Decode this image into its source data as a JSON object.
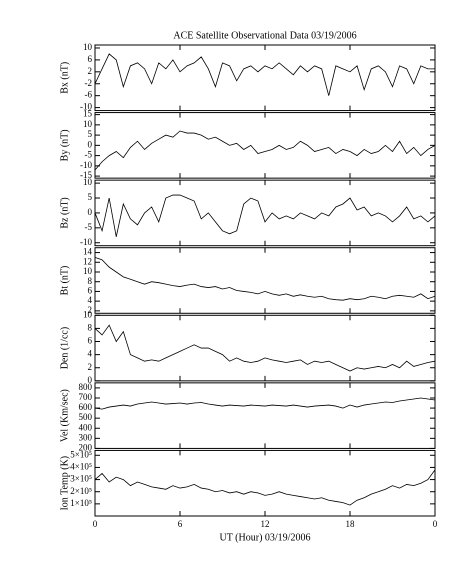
{
  "chart_data": [
    {
      "type": "line",
      "title": "ACE Satellite Observational Data   03/19/2006",
      "ylabel": "Bx (nT)",
      "color": "#000000",
      "xlim": [
        0,
        24
      ],
      "xticks": [
        0,
        6,
        12,
        18,
        {
          "value": 24,
          "label": "0"
        }
      ],
      "ylim": [
        -11,
        11
      ],
      "yticks": [
        -10,
        -6,
        -2,
        2,
        6,
        10
      ],
      "x": [
        0,
        0.5,
        1,
        1.5,
        2,
        2.5,
        3,
        3.5,
        4,
        4.5,
        5,
        5.5,
        6,
        6.5,
        7,
        7.5,
        8,
        8.5,
        9,
        9.5,
        10,
        10.5,
        11,
        11.5,
        12,
        12.5,
        13,
        13.5,
        14,
        14.5,
        15,
        15.5,
        16,
        16.5,
        17,
        17.5,
        18,
        18.5,
        19,
        19.5,
        20,
        20.5,
        21,
        21.5,
        22,
        22.5,
        23,
        23.5,
        24
      ],
      "values": [
        -2,
        3,
        8,
        6,
        -3,
        4,
        5,
        3,
        -2,
        5,
        3,
        6,
        2,
        4,
        5,
        7,
        3,
        -3,
        5,
        4,
        -1,
        3,
        4,
        2,
        4,
        3,
        5,
        3,
        1,
        4,
        2,
        4,
        3,
        -6,
        4,
        3,
        2,
        4,
        -4,
        3,
        4,
        2,
        -3,
        4,
        3,
        -2,
        4,
        3,
        3
      ]
    },
    {
      "type": "line",
      "ylabel": "By (nT)",
      "color": "#000000",
      "xlim": [
        0,
        24
      ],
      "xticks": [
        0,
        6,
        12,
        18,
        {
          "value": 24,
          "label": "0"
        }
      ],
      "ylim": [
        -16,
        16
      ],
      "yticks": [
        -15,
        -10,
        -5,
        0,
        5,
        10,
        15
      ],
      "x": [
        0,
        0.5,
        1,
        1.5,
        2,
        2.5,
        3,
        3.5,
        4,
        4.5,
        5,
        5.5,
        6,
        6.5,
        7,
        7.5,
        8,
        8.5,
        9,
        9.5,
        10,
        10.5,
        11,
        11.5,
        12,
        12.5,
        13,
        13.5,
        14,
        14.5,
        15,
        15.5,
        16,
        16.5,
        17,
        17.5,
        18,
        18.5,
        19,
        19.5,
        20,
        20.5,
        21,
        21.5,
        22,
        22.5,
        23,
        23.5,
        24
      ],
      "values": [
        -12,
        -8,
        -5,
        -3,
        -6,
        -1,
        2,
        -2,
        1,
        3,
        5,
        4,
        7,
        6,
        6,
        5,
        3,
        4,
        2,
        0,
        1,
        -2,
        0,
        -4,
        -3,
        -2,
        0,
        -2,
        -1,
        2,
        0,
        -3,
        -2,
        -1,
        -4,
        -2,
        -3,
        -5,
        -2,
        -4,
        -3,
        0,
        -3,
        2,
        -4,
        -1,
        -5,
        -2,
        0
      ]
    },
    {
      "type": "line",
      "ylabel": "Bz (nT)",
      "color": "#000000",
      "xlim": [
        0,
        24
      ],
      "xticks": [
        0,
        6,
        12,
        18,
        {
          "value": 24,
          "label": "0"
        }
      ],
      "ylim": [
        -11,
        11
      ],
      "yticks": [
        -10,
        -5,
        0,
        5,
        10
      ],
      "x": [
        0,
        0.5,
        1,
        1.5,
        2,
        2.5,
        3,
        3.5,
        4,
        4.5,
        5,
        5.5,
        6,
        6.5,
        7,
        7.5,
        8,
        8.5,
        9,
        9.5,
        10,
        10.5,
        11,
        11.5,
        12,
        12.5,
        13,
        13.5,
        14,
        14.5,
        15,
        15.5,
        16,
        16.5,
        17,
        17.5,
        18,
        18.5,
        19,
        19.5,
        20,
        20.5,
        21,
        21.5,
        22,
        22.5,
        23,
        23.5,
        24
      ],
      "values": [
        0,
        -6,
        5,
        -8,
        3,
        -2,
        -4,
        0,
        2,
        -3,
        5,
        6,
        6,
        5,
        4,
        -2,
        0,
        -3,
        -6,
        -7,
        -6,
        3,
        5,
        4,
        -3,
        0,
        -2,
        -1,
        -2,
        0,
        -1,
        -2,
        0,
        -1,
        2,
        3,
        5,
        1,
        2,
        -1,
        0,
        -1,
        -3,
        -1,
        2,
        -2,
        -1,
        -3,
        -1
      ]
    },
    {
      "type": "line",
      "ylabel": "Bt (nT)",
      "color": "#000000",
      "xlim": [
        0,
        24
      ],
      "xticks": [
        0,
        6,
        12,
        18,
        {
          "value": 24,
          "label": "0"
        }
      ],
      "ylim": [
        1.5,
        15
      ],
      "yticks": [
        2,
        4,
        6,
        8,
        10,
        12,
        14
      ],
      "x": [
        0,
        0.5,
        1,
        1.5,
        2,
        2.5,
        3,
        3.5,
        4,
        4.5,
        5,
        5.5,
        6,
        6.5,
        7,
        7.5,
        8,
        8.5,
        9,
        9.5,
        10,
        10.5,
        11,
        11.5,
        12,
        12.5,
        13,
        13.5,
        14,
        14.5,
        15,
        15.5,
        16,
        16.5,
        17,
        17.5,
        18,
        18.5,
        19,
        19.5,
        20,
        20.5,
        21,
        21.5,
        22,
        22.5,
        23,
        23.5,
        24
      ],
      "values": [
        13,
        12.5,
        11,
        10,
        9,
        8.5,
        8,
        7.5,
        8,
        7.8,
        7.5,
        7.2,
        7,
        7.3,
        7.5,
        7,
        6.8,
        7,
        6.5,
        6.8,
        6.2,
        6,
        5.8,
        5.5,
        6,
        5.5,
        5.2,
        5.5,
        5,
        5.3,
        5,
        4.8,
        5,
        4.5,
        4.3,
        4.2,
        4.5,
        4.3,
        4.5,
        5,
        4.8,
        4.5,
        5,
        5.2,
        5,
        4.8,
        5.5,
        4.5,
        5
      ]
    },
    {
      "type": "line",
      "ylabel": "Den (1/cc)",
      "color": "#000000",
      "xlim": [
        0,
        24
      ],
      "xticks": [
        0,
        6,
        12,
        18,
        {
          "value": 24,
          "label": "0"
        }
      ],
      "ylim": [
        0,
        10
      ],
      "yticks": [
        0,
        2,
        4,
        6,
        8,
        10
      ],
      "x": [
        0,
        0.5,
        1,
        1.5,
        2,
        2.5,
        3,
        3.5,
        4,
        4.5,
        5,
        5.5,
        6,
        6.5,
        7,
        7.5,
        8,
        8.5,
        9,
        9.5,
        10,
        10.5,
        11,
        11.5,
        12,
        12.5,
        13,
        13.5,
        14,
        14.5,
        15,
        15.5,
        16,
        16.5,
        17,
        17.5,
        18,
        18.5,
        19,
        19.5,
        20,
        20.5,
        21,
        21.5,
        22,
        22.5,
        23,
        23.5,
        24
      ],
      "values": [
        8,
        7,
        8.5,
        6,
        7.5,
        4,
        3.5,
        3,
        3.2,
        3,
        3.5,
        4,
        4.5,
        5,
        5.5,
        5,
        5,
        4.5,
        4,
        3,
        3.5,
        3,
        2.8,
        3,
        3.5,
        3.2,
        3,
        2.8,
        3,
        3.2,
        2.5,
        3,
        2.8,
        3,
        2.5,
        2,
        1.5,
        2,
        1.8,
        2,
        2.2,
        2,
        2.5,
        2,
        3,
        2.2,
        2.5,
        2.8,
        3
      ]
    },
    {
      "type": "line",
      "ylabel": "Vel (Km/sec)",
      "color": "#000000",
      "xlim": [
        0,
        24
      ],
      "xticks": [
        0,
        6,
        12,
        18,
        {
          "value": 24,
          "label": "0"
        }
      ],
      "ylim": [
        200,
        850
      ],
      "yticks": [
        200,
        300,
        400,
        500,
        600,
        700,
        800
      ],
      "x": [
        0,
        0.5,
        1,
        1.5,
        2,
        2.5,
        3,
        3.5,
        4,
        4.5,
        5,
        5.5,
        6,
        6.5,
        7,
        7.5,
        8,
        8.5,
        9,
        9.5,
        10,
        10.5,
        11,
        11.5,
        12,
        12.5,
        13,
        13.5,
        14,
        14.5,
        15,
        15.5,
        16,
        16.5,
        17,
        17.5,
        18,
        18.5,
        19,
        19.5,
        20,
        20.5,
        21,
        21.5,
        22,
        22.5,
        23,
        23.5,
        24
      ],
      "values": [
        600,
        590,
        610,
        620,
        630,
        620,
        640,
        650,
        660,
        650,
        640,
        645,
        650,
        640,
        650,
        655,
        640,
        630,
        620,
        630,
        625,
        620,
        630,
        625,
        620,
        630,
        625,
        620,
        630,
        620,
        610,
        620,
        625,
        630,
        620,
        600,
        630,
        610,
        630,
        640,
        650,
        660,
        655,
        670,
        680,
        690,
        700,
        690,
        680
      ]
    },
    {
      "type": "line",
      "ylabel": "Ion Temp (K)",
      "xlabel": "UT (Hour)   03/19/2006",
      "color": "#000000",
      "xlim": [
        0,
        24
      ],
      "xticks": [
        0,
        6,
        12,
        18,
        {
          "value": 24,
          "label": "0"
        }
      ],
      "ylim": [
        0,
        540000
      ],
      "yticks": [
        {
          "value": 100000,
          "label": "1×10⁵"
        },
        {
          "value": 200000,
          "label": "2×10⁵"
        },
        {
          "value": 300000,
          "label": "3×10⁵"
        },
        {
          "value": 400000,
          "label": "4×10⁵"
        },
        {
          "value": 500000,
          "label": "5×10⁵"
        }
      ],
      "x": [
        0,
        0.5,
        1,
        1.5,
        2,
        2.5,
        3,
        3.5,
        4,
        4.5,
        5,
        5.5,
        6,
        6.5,
        7,
        7.5,
        8,
        8.5,
        9,
        9.5,
        10,
        10.5,
        11,
        11.5,
        12,
        12.5,
        13,
        13.5,
        14,
        14.5,
        15,
        15.5,
        16,
        16.5,
        17,
        17.5,
        18,
        18.5,
        19,
        19.5,
        20,
        20.5,
        21,
        21.5,
        22,
        22.5,
        23,
        23.5,
        24
      ],
      "values": [
        300000,
        350000,
        280000,
        320000,
        300000,
        250000,
        280000,
        260000,
        240000,
        230000,
        220000,
        250000,
        230000,
        240000,
        260000,
        230000,
        220000,
        200000,
        210000,
        190000,
        200000,
        180000,
        200000,
        190000,
        170000,
        180000,
        200000,
        180000,
        170000,
        160000,
        150000,
        140000,
        150000,
        130000,
        120000,
        110000,
        90000,
        130000,
        150000,
        180000,
        200000,
        220000,
        250000,
        230000,
        260000,
        250000,
        270000,
        300000,
        380000
      ]
    }
  ]
}
